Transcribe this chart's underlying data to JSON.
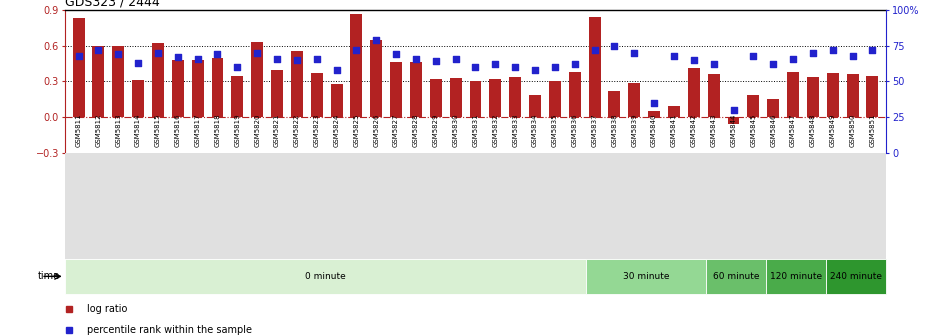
{
  "title": "GDS323 / 2444",
  "samples": [
    "GSM5811",
    "GSM5812",
    "GSM5813",
    "GSM5814",
    "GSM5815",
    "GSM5816",
    "GSM5817",
    "GSM5818",
    "GSM5819",
    "GSM5820",
    "GSM5821",
    "GSM5822",
    "GSM5823",
    "GSM5824",
    "GSM5825",
    "GSM5826",
    "GSM5827",
    "GSM5828",
    "GSM5829",
    "GSM5830",
    "GSM5831",
    "GSM5832",
    "GSM5833",
    "GSM5834",
    "GSM5835",
    "GSM5836",
    "GSM5837",
    "GSM5838",
    "GSM5839",
    "GSM5840",
    "GSM5841",
    "GSM5842",
    "GSM5843",
    "GSM5844",
    "GSM5845",
    "GSM5846",
    "GSM5847",
    "GSM5848",
    "GSM5849",
    "GSM5850",
    "GSM5851"
  ],
  "log_ratio": [
    0.83,
    0.6,
    0.6,
    0.31,
    0.62,
    0.48,
    0.48,
    0.5,
    0.35,
    0.63,
    0.4,
    0.56,
    0.37,
    0.28,
    0.87,
    0.65,
    0.46,
    0.46,
    0.32,
    0.33,
    0.3,
    0.32,
    0.34,
    0.19,
    0.3,
    0.38,
    0.84,
    0.22,
    0.29,
    0.05,
    0.09,
    0.41,
    0.36,
    -0.06,
    0.19,
    0.15,
    0.38,
    0.34,
    0.37,
    0.36,
    0.35
  ],
  "percentile": [
    68,
    72,
    69,
    63,
    70,
    67,
    66,
    69,
    60,
    70,
    66,
    65,
    66,
    58,
    72,
    79,
    69,
    66,
    64,
    66,
    60,
    62,
    60,
    58,
    60,
    62,
    72,
    75,
    70,
    35,
    68,
    65,
    62,
    30,
    68,
    62,
    66,
    70,
    72,
    68,
    72
  ],
  "time_groups": [
    {
      "label": "0 minute",
      "start": 0,
      "end": 26,
      "color": "#d9f0d3"
    },
    {
      "label": "30 minute",
      "start": 26,
      "end": 32,
      "color": "#94d894"
    },
    {
      "label": "60 minute",
      "start": 32,
      "end": 35,
      "color": "#6abf6a"
    },
    {
      "label": "120 minute",
      "start": 35,
      "end": 38,
      "color": "#4aab4a"
    },
    {
      "label": "240 minute",
      "start": 38,
      "end": 41,
      "color": "#2e962e"
    }
  ],
  "bar_color": "#b22222",
  "dot_color": "#2222cc",
  "ylim_left": [
    -0.3,
    0.9
  ],
  "ylim_right": [
    0,
    100
  ],
  "yticks_left": [
    -0.3,
    0.0,
    0.3,
    0.6,
    0.9
  ],
  "yticks_right": [
    0,
    25,
    50,
    75,
    100
  ],
  "ytick_labels_right": [
    "0",
    "25",
    "50",
    "75",
    "100%"
  ],
  "hlines_dotted": [
    0.3,
    0.6
  ],
  "bg_color": "#ffffff",
  "xticklabel_bg": "#e0e0e0"
}
